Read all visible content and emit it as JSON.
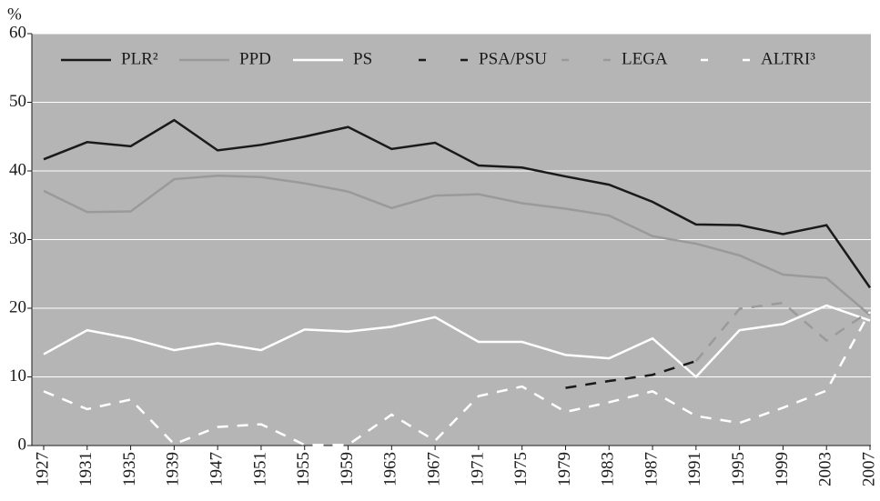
{
  "chart_data": {
    "type": "line",
    "y_label": "%",
    "categories": [
      "1927",
      "1931",
      "1935",
      "1939",
      "1947",
      "1951",
      "1955",
      "1959",
      "1963",
      "1967",
      "1971",
      "1975",
      "1979",
      "1983",
      "1987",
      "1991",
      "1995",
      "1999",
      "2003",
      "2007"
    ],
    "ylim": [
      0,
      60
    ],
    "yticks": [
      0,
      10,
      20,
      30,
      40,
      50,
      60
    ],
    "grid": true,
    "series": [
      {
        "name": "PLR²",
        "color": "#1a1a1a",
        "dash": false,
        "values": [
          41.7,
          44.2,
          43.6,
          47.4,
          43.0,
          43.8,
          45.0,
          46.4,
          43.2,
          44.1,
          40.8,
          40.5,
          39.2,
          38.0,
          35.5,
          32.2,
          32.1,
          30.8,
          32.1,
          23.0
        ]
      },
      {
        "name": "PPD",
        "color": "#9a9a9a",
        "dash": false,
        "values": [
          37.1,
          34.0,
          34.1,
          38.8,
          39.3,
          39.1,
          38.2,
          37.0,
          34.6,
          36.4,
          36.6,
          35.3,
          34.5,
          33.5,
          30.5,
          29.4,
          27.7,
          24.9,
          24.4,
          19.0
        ]
      },
      {
        "name": "PS",
        "color": "#ffffff",
        "dash": false,
        "values": [
          13.3,
          16.8,
          15.6,
          13.9,
          14.9,
          13.9,
          16.9,
          16.6,
          17.3,
          18.7,
          15.1,
          15.1,
          13.2,
          12.7,
          15.6,
          10.0,
          16.8,
          17.7,
          20.4,
          18.2
        ]
      },
      {
        "name": "PSA/PSU",
        "color": "#1a1a1a",
        "dash": true,
        "values": [
          null,
          null,
          null,
          null,
          null,
          null,
          null,
          null,
          null,
          null,
          null,
          null,
          8.4,
          9.4,
          10.3,
          12.3,
          null,
          null,
          null,
          null
        ]
      },
      {
        "name": "LEGA",
        "color": "#9a9a9a",
        "dash": true,
        "values": [
          null,
          null,
          null,
          null,
          null,
          null,
          null,
          null,
          null,
          null,
          null,
          null,
          null,
          null,
          null,
          12.3,
          19.9,
          20.8,
          15.3,
          19.6
        ]
      },
      {
        "name": "ALTRI³",
        "color": "#ffffff",
        "dash": true,
        "values": [
          7.9,
          5.3,
          6.7,
          0.2,
          2.7,
          3.1,
          0.1,
          0.1,
          4.5,
          0.7,
          7.2,
          8.6,
          4.9,
          6.3,
          7.9,
          4.3,
          3.3,
          5.5,
          8.0,
          19.5
        ]
      }
    ]
  }
}
